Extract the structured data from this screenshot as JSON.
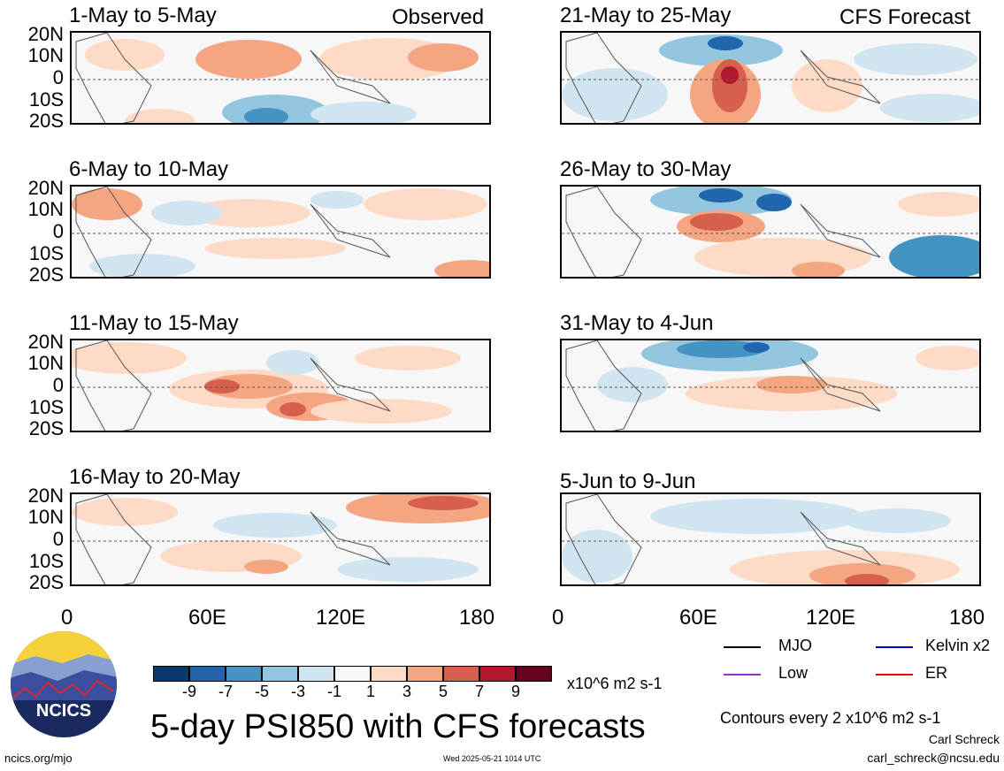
{
  "header": {
    "observed_label": "Observed",
    "forecast_label": "CFS Forecast"
  },
  "panels": [
    {
      "title": "1-May to 5-May"
    },
    {
      "title": "6-May to 10-May"
    },
    {
      "title": "11-May to 15-May"
    },
    {
      "title": "16-May to 20-May"
    },
    {
      "title": "21-May to 25-May"
    },
    {
      "title": "26-May to 30-May"
    },
    {
      "title": "31-May to 4-Jun"
    },
    {
      "title": "5-Jun to 9-Jun"
    }
  ],
  "lat_labels": [
    "20N",
    "10N",
    "0",
    "10S",
    "20S"
  ],
  "lon_labels": [
    "0",
    "60E",
    "120E",
    "180"
  ],
  "colorbar": {
    "colors": [
      "#0a3a6b",
      "#2166ac",
      "#4393c3",
      "#92c5de",
      "#d1e5f0",
      "#f7f7f7",
      "#fddbc7",
      "#f4a582",
      "#d6604d",
      "#b2182b",
      "#67001f"
    ],
    "labels": [
      "-9",
      "-7",
      "-5",
      "-3",
      "-1",
      "1",
      "3",
      "5",
      "7",
      "9"
    ],
    "units": "x10^6 m2 s-1"
  },
  "legend": {
    "items": [
      {
        "label": "MJO",
        "color": "#000000"
      },
      {
        "label": "Kelvin x2",
        "color": "#0000cc"
      },
      {
        "label": "Low",
        "color": "#9933cc"
      },
      {
        "label": "ER",
        "color": "#e60000"
      }
    ]
  },
  "main_title": "5-day PSI850 with CFS forecasts",
  "contour_note": "Contours every 2 x10^6 m2 s-1",
  "author": "Carl Schreck",
  "email": "carl_schreck@ncsu.edu",
  "site": "ncics.org/mjo",
  "timestamp": "Wed 2025-05-21 1014 UTC",
  "logo_text": "NCICS"
}
